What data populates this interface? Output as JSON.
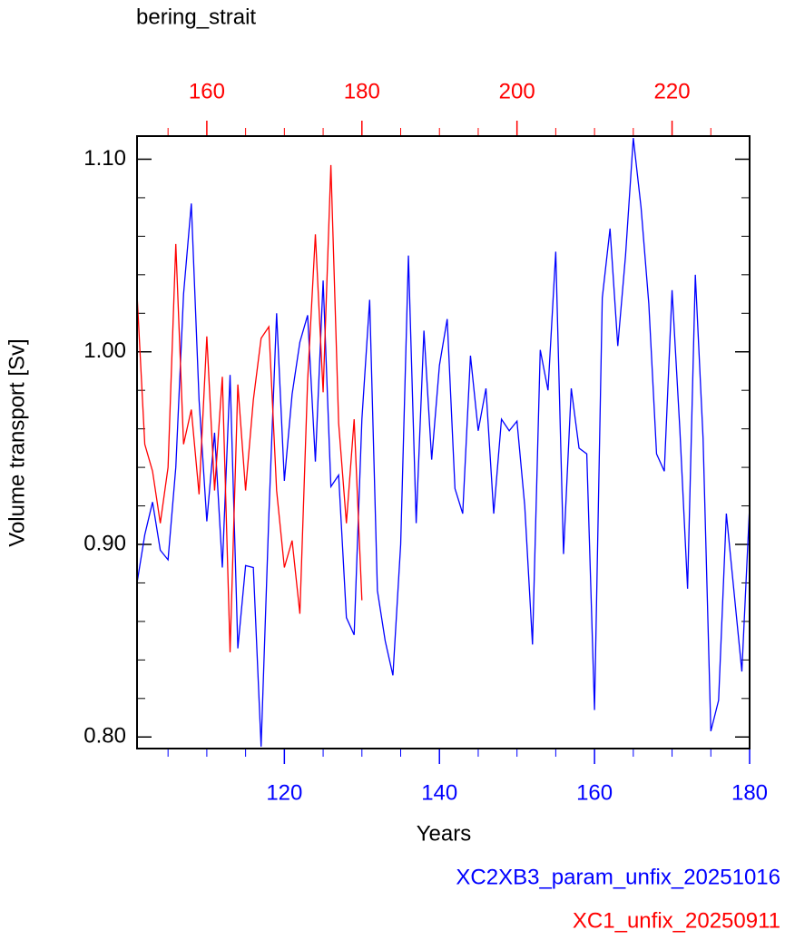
{
  "chart_data": {
    "type": "line",
    "title": "bering_strait",
    "x_label": "Years",
    "y_label": "Volume transport [Sv]",
    "xlim": [
      101,
      180
    ],
    "xticks": [
      120,
      140,
      160,
      180
    ],
    "xminorticks": [
      105,
      110,
      115,
      125,
      130,
      135,
      145,
      150,
      155,
      165,
      170,
      175
    ],
    "x2lim": [
      151,
      230
    ],
    "x2ticks": [
      160,
      180,
      200,
      220
    ],
    "x2minorticks": [
      155,
      165,
      170,
      175,
      185,
      190,
      195,
      205,
      210,
      215,
      225
    ],
    "ylim": [
      0.794,
      1.112
    ],
    "yticks": [
      {
        "value": 0.8,
        "label": "0.80"
      },
      {
        "value": 0.9,
        "label": "0.90"
      },
      {
        "value": 1.0,
        "label": "1.00"
      },
      {
        "value": 1.1,
        "label": "1.10"
      }
    ],
    "yminorticks": [
      0.82,
      0.84,
      0.86,
      0.88,
      0.92,
      0.94,
      0.96,
      0.98,
      1.02,
      1.04,
      1.06,
      1.08
    ],
    "series": [
      {
        "name": "XC2XB3_param_unfix_20251016",
        "color": "#0000ff",
        "axis": "x",
        "x": [
          101,
          102,
          103,
          104,
          105,
          106,
          107,
          108,
          109,
          110,
          111,
          112,
          113,
          114,
          115,
          116,
          117,
          118,
          119,
          120,
          121,
          122,
          123,
          124,
          125,
          126,
          127,
          128,
          129,
          130,
          131,
          132,
          133,
          134,
          135,
          136,
          137,
          138,
          139,
          140,
          141,
          142,
          143,
          144,
          145,
          146,
          147,
          148,
          149,
          150,
          151,
          152,
          153,
          154,
          155,
          156,
          157,
          158,
          159,
          160,
          161,
          162,
          163,
          164,
          165,
          166,
          167,
          168,
          169,
          170,
          171,
          172,
          173,
          174,
          175,
          176,
          177,
          178,
          179,
          180
        ],
        "values": [
          0.88,
          0.905,
          0.922,
          0.897,
          0.892,
          0.94,
          1.03,
          1.077,
          0.975,
          0.912,
          0.958,
          0.888,
          0.988,
          0.846,
          0.889,
          0.888,
          0.795,
          0.915,
          1.02,
          0.933,
          0.978,
          1.005,
          1.019,
          0.943,
          1.037,
          0.93,
          0.936,
          0.862,
          0.853,
          0.965,
          1.027,
          0.876,
          0.85,
          0.832,
          0.9,
          1.05,
          0.911,
          1.011,
          0.944,
          0.993,
          1.017,
          0.929,
          0.916,
          0.998,
          0.959,
          0.981,
          0.916,
          0.965,
          0.959,
          0.964,
          0.92,
          0.848,
          1.001,
          0.98,
          1.052,
          0.895,
          0.981,
          0.95,
          0.947,
          0.814,
          1.028,
          1.064,
          1.003,
          1.05,
          1.111,
          1.075,
          1.025,
          0.947,
          0.938,
          1.032,
          0.96,
          0.877,
          1.04,
          0.955,
          0.803,
          0.819,
          0.916,
          0.875,
          0.834,
          0.92
        ]
      },
      {
        "name": "XC1_unfix_20250911",
        "color": "#ff0000",
        "axis": "x2",
        "x": [
          151,
          152,
          153,
          154,
          155,
          156,
          157,
          158,
          159,
          160,
          161,
          162,
          163,
          164,
          165,
          166,
          167,
          168,
          169,
          170,
          171,
          172,
          173,
          174,
          175,
          176,
          177,
          178,
          179,
          180
        ],
        "values": [
          1.03,
          0.952,
          0.938,
          0.911,
          0.94,
          1.056,
          0.952,
          0.97,
          0.926,
          1.008,
          0.928,
          0.987,
          0.844,
          0.983,
          0.928,
          0.975,
          1.007,
          1.013,
          0.928,
          0.888,
          0.902,
          0.864,
          0.985,
          1.061,
          0.979,
          1.097,
          0.963,
          0.911,
          0.965,
          0.871
        ]
      }
    ]
  }
}
